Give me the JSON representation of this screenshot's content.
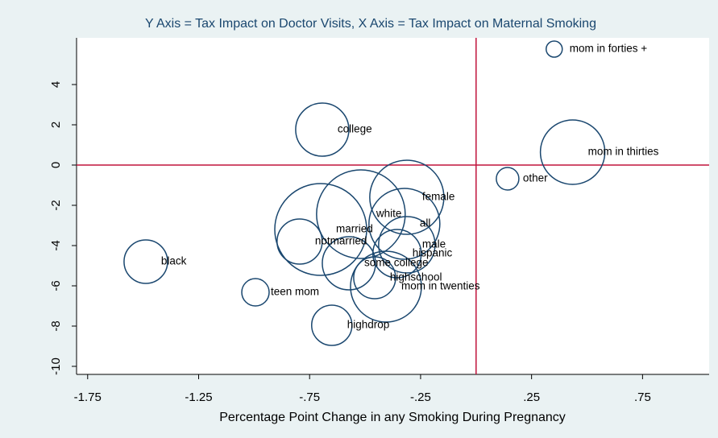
{
  "chart_data": {
    "type": "bubble",
    "title": "Y Axis = Tax Impact on Doctor Visits, X Axis = Tax Impact on Maternal Smoking",
    "xlabel": "Percentage Point Change in any Smoking During Pregnancy",
    "xlim": [
      -1.8,
      1.05
    ],
    "ylim": [
      -10.4,
      6.32
    ],
    "xticks": [
      {
        "value": -1.75,
        "label": "-1.75"
      },
      {
        "value": -1.25,
        "label": "-1.25"
      },
      {
        "value": -0.75,
        "label": "-.75"
      },
      {
        "value": -0.25,
        "label": "-.25"
      },
      {
        "value": 0.25,
        "label": ".25"
      },
      {
        "value": 0.75,
        "label": ".75"
      }
    ],
    "yticks": [
      4,
      2,
      0,
      -2,
      -4,
      -6,
      -8,
      -10
    ],
    "reference_lines": {
      "x": 0,
      "y": 0,
      "color": "#c0143c"
    },
    "color": "#1a476f",
    "labels": [
      "mom in forties +",
      "college",
      "mom in thirties",
      "other",
      "female",
      "white",
      "all",
      "married",
      "notmarried",
      "male",
      "hispanic",
      "black",
      "some college",
      "highschool",
      "mom in twenties",
      "teen mom",
      "highdrop"
    ],
    "x": [
      0.352,
      -0.693,
      0.435,
      0.142,
      -0.312,
      -0.519,
      -0.323,
      -0.7,
      -0.795,
      -0.312,
      -0.356,
      -1.488,
      -0.573,
      -0.457,
      -0.406,
      -0.994,
      -0.65
    ],
    "y": [
      5.76,
      1.76,
      0.64,
      -0.68,
      -1.6,
      -2.44,
      -2.92,
      -3.2,
      -3.8,
      -3.96,
      -4.4,
      -4.8,
      -4.88,
      -5.6,
      -6.04,
      -6.32,
      -7.96
    ],
    "sizes": [
      10,
      33,
      40,
      14,
      46,
      55,
      44,
      57,
      28,
      35,
      30,
      27,
      33,
      26,
      44,
      17,
      25
    ]
  }
}
